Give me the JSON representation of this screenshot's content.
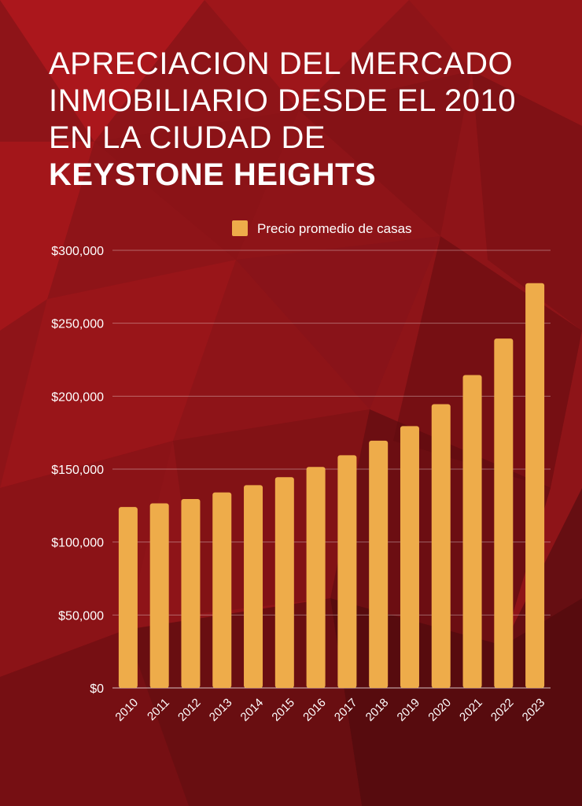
{
  "title": {
    "line1": "APRECIACION DEL MERCADO",
    "line2": "INMOBILIARIO DESDE EL 2010",
    "line3": "EN LA CIUDAD DE",
    "line4": "KEYSTONE HEIGHTS"
  },
  "colors": {
    "bar": "#eeac4a",
    "background": "#8e1418"
  },
  "chart_data": {
    "type": "bar",
    "categories": [
      "2010",
      "2011",
      "2012",
      "2013",
      "2014",
      "2015",
      "2016",
      "2017",
      "2018",
      "2019",
      "2020",
      "2021",
      "2022",
      "2023"
    ],
    "series": [
      {
        "name": "Precio promedio de casas",
        "values": [
          124000,
          126500,
          129500,
          134000,
          139000,
          144500,
          151500,
          159500,
          169500,
          179500,
          194500,
          214500,
          239500,
          277500
        ]
      }
    ],
    "yticks": [
      "$0",
      "$50,000",
      "$100,000",
      "$150,000",
      "$200,000",
      "$250,000",
      "$300,000"
    ],
    "ylim": [
      0,
      300000
    ],
    "grid": true,
    "legend_position": "top-center",
    "xlabel": "",
    "ylabel": ""
  }
}
